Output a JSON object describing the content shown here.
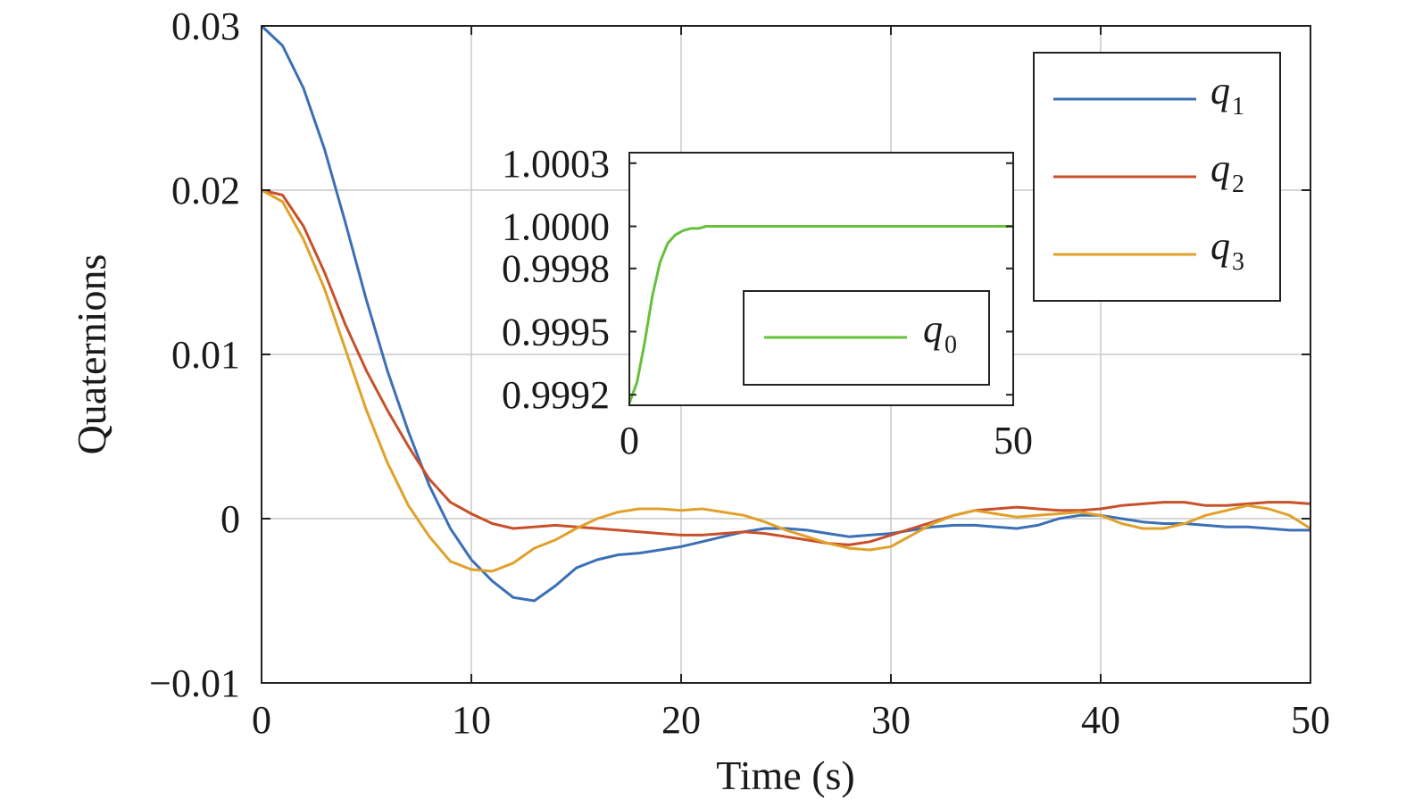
{
  "chart_data": [
    {
      "type": "line",
      "xlabel": "Time (s)",
      "ylabel": "Quaternions",
      "xlim": [
        0,
        50
      ],
      "ylim": [
        -0.01,
        0.03
      ],
      "xticks": [
        0,
        10,
        20,
        30,
        40,
        50
      ],
      "xtick_labels": [
        "0",
        "10",
        "20",
        "30",
        "40",
        "50"
      ],
      "yticks": [
        -0.01,
        0,
        0.01,
        0.02,
        0.03
      ],
      "ytick_labels": [
        "−0.01",
        "0",
        "0.01",
        "0.02",
        "0.03"
      ],
      "grid": true,
      "legend_position": "top-right",
      "series": [
        {
          "name": "q",
          "subscript": "1",
          "color": "#3b6fb6",
          "x": [
            0,
            1,
            2,
            3,
            4,
            5,
            6,
            7,
            8,
            9,
            10,
            11,
            12,
            13,
            14,
            15,
            16,
            17,
            18,
            19,
            20,
            21,
            22,
            23,
            24,
            25,
            26,
            27,
            28,
            29,
            30,
            31,
            32,
            33,
            34,
            35,
            36,
            37,
            38,
            39,
            40,
            41,
            42,
            43,
            44,
            45,
            46,
            47,
            48,
            49,
            50
          ],
          "y": [
            0.03,
            0.0288,
            0.0262,
            0.0225,
            0.018,
            0.0133,
            0.009,
            0.0053,
            0.002,
            -0.0006,
            -0.0025,
            -0.0038,
            -0.0048,
            -0.005,
            -0.0041,
            -0.003,
            -0.0025,
            -0.0022,
            -0.0021,
            -0.0019,
            -0.0017,
            -0.0014,
            -0.0011,
            -0.0008,
            -0.0006,
            -0.0006,
            -0.0007,
            -0.0009,
            -0.0011,
            -0.001,
            -0.0009,
            -0.0007,
            -0.0005,
            -0.0004,
            -0.0004,
            -0.0005,
            -0.0006,
            -0.0004,
            0.0,
            0.0002,
            0.0002,
            0.0,
            -0.0002,
            -0.0003,
            -0.0003,
            -0.0004,
            -0.0005,
            -0.0005,
            -0.0006,
            -0.0007,
            -0.0007
          ]
        },
        {
          "name": "q",
          "subscript": "2",
          "color": "#c8502a",
          "x": [
            0,
            1,
            2,
            3,
            4,
            5,
            6,
            7,
            8,
            9,
            10,
            11,
            12,
            13,
            14,
            15,
            16,
            17,
            18,
            19,
            20,
            21,
            22,
            23,
            24,
            25,
            26,
            27,
            28,
            29,
            30,
            31,
            32,
            33,
            34,
            35,
            36,
            37,
            38,
            39,
            40,
            41,
            42,
            43,
            44,
            45,
            46,
            47,
            48,
            49,
            50
          ],
          "y": [
            0.02,
            0.0197,
            0.0178,
            0.015,
            0.0118,
            0.009,
            0.0066,
            0.0044,
            0.0024,
            0.001,
            0.0003,
            -0.0003,
            -0.0006,
            -0.0005,
            -0.0004,
            -0.0005,
            -0.0006,
            -0.0007,
            -0.0008,
            -0.0009,
            -0.001,
            -0.001,
            -0.0009,
            -0.0008,
            -0.0009,
            -0.0011,
            -0.0013,
            -0.0015,
            -0.0016,
            -0.0014,
            -0.001,
            -0.0006,
            -0.0002,
            0.0002,
            0.0005,
            0.0006,
            0.0007,
            0.0006,
            0.0005,
            0.0005,
            0.0006,
            0.0008,
            0.0009,
            0.001,
            0.001,
            0.0008,
            0.0008,
            0.0009,
            0.001,
            0.001,
            0.0009
          ]
        },
        {
          "name": "q",
          "subscript": "3",
          "color": "#e0a12a",
          "x": [
            0,
            1,
            2,
            3,
            4,
            5,
            6,
            7,
            8,
            9,
            10,
            11,
            12,
            13,
            14,
            15,
            16,
            17,
            18,
            19,
            20,
            21,
            22,
            23,
            24,
            25,
            26,
            27,
            28,
            29,
            30,
            31,
            32,
            33,
            34,
            35,
            36,
            37,
            38,
            39,
            40,
            41,
            42,
            43,
            44,
            45,
            46,
            47,
            48,
            49,
            50
          ],
          "y": [
            0.02,
            0.0193,
            0.017,
            0.014,
            0.0103,
            0.0066,
            0.0034,
            0.0008,
            -0.0011,
            -0.0026,
            -0.0031,
            -0.0032,
            -0.0027,
            -0.0018,
            -0.0013,
            -0.0006,
            0.0,
            0.0004,
            0.0006,
            0.0006,
            0.0005,
            0.0006,
            0.0004,
            0.0002,
            -0.0002,
            -0.0007,
            -0.0011,
            -0.0015,
            -0.0018,
            -0.0019,
            -0.0017,
            -0.001,
            -0.0003,
            0.0002,
            0.0005,
            0.0003,
            0.0001,
            0.0002,
            0.0003,
            0.0004,
            0.0002,
            -0.0003,
            -0.0006,
            -0.0006,
            -0.0003,
            0.0002,
            0.0005,
            0.0008,
            0.0006,
            0.0002,
            -0.0006
          ]
        }
      ]
    },
    {
      "type": "line",
      "placement": "inset",
      "xlim": [
        0,
        50
      ],
      "ylim": [
        0.99915,
        1.00035
      ],
      "xticks": [
        0,
        50
      ],
      "xtick_labels": [
        "0",
        "50"
      ],
      "yticks": [
        0.9992,
        0.9995,
        0.9998,
        1.0,
        1.0003
      ],
      "ytick_labels": [
        "0.9992",
        "0.9995",
        "0.9998",
        "1.0000",
        "1.0003"
      ],
      "grid": false,
      "legend_position": "bottom-right",
      "series": [
        {
          "name": "q",
          "subscript": "0",
          "color": "#66c03a",
          "x": [
            0,
            1,
            2,
            3,
            4,
            5,
            6,
            7,
            8,
            9,
            10,
            11,
            12,
            13,
            15,
            18,
            22,
            28,
            35,
            42,
            50
          ],
          "y": [
            0.99916,
            0.99926,
            0.99945,
            0.99967,
            0.99983,
            0.99992,
            0.99996,
            0.99998,
            0.99999,
            0.99999,
            1.0,
            1.0,
            1.0,
            1.0,
            1.0,
            1.0,
            1.0,
            1.0,
            1.0,
            1.0,
            1.0
          ]
        }
      ]
    }
  ]
}
